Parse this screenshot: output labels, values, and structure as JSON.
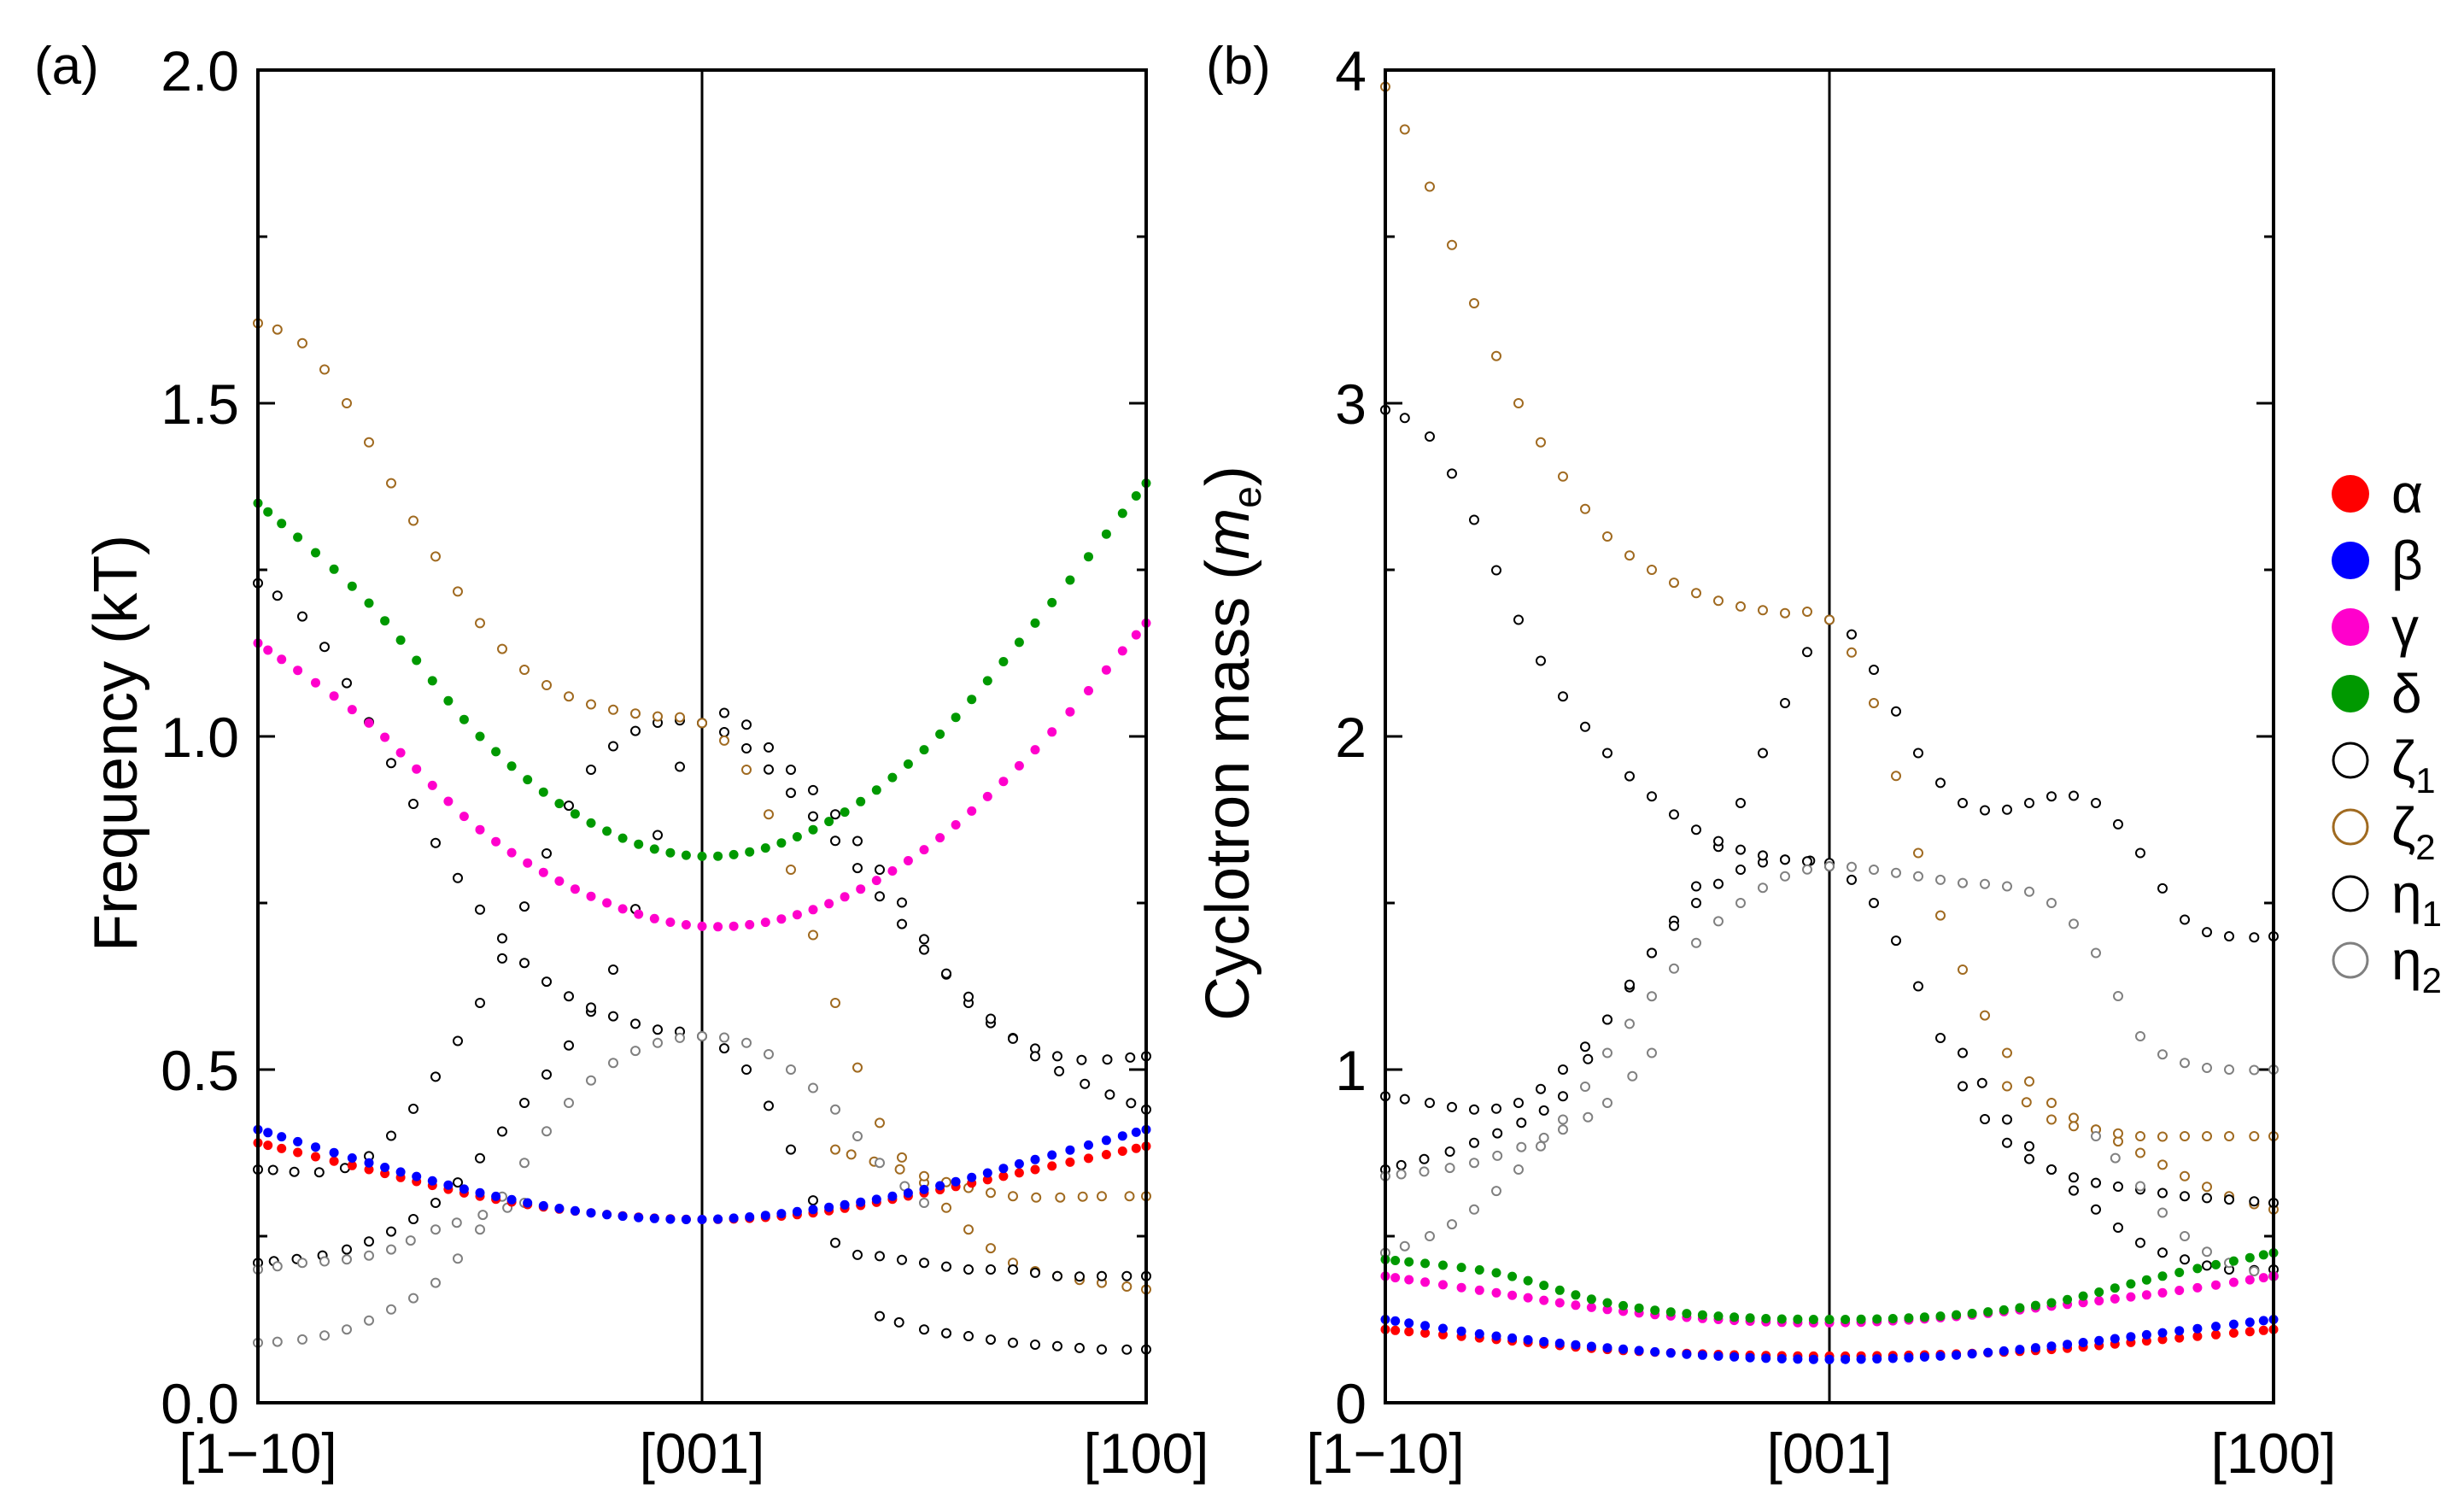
{
  "chart_data": [
    {
      "type": "scatter",
      "panel_label": "(a)",
      "ylabel": "Frequency (kT)",
      "xlabel": "",
      "ylim": [
        0.0,
        2.0
      ],
      "xlim": [
        0,
        2
      ],
      "yticks": [
        0.0,
        0.5,
        1.0,
        1.5,
        2.0
      ],
      "ytick_labels": [
        "0.0",
        "0.5",
        "1.0",
        "1.5",
        "2.0"
      ],
      "xticks": [
        0,
        1,
        2
      ],
      "xtick_labels": [
        "[1−10]",
        "[001]",
        "[100]"
      ],
      "divider_at": 1,
      "series": [
        {
          "name": "alpha",
          "filled": true,
          "color": "#ff0000",
          "x": [
            0,
            0.25,
            0.5,
            0.75,
            1,
            1.25,
            1.5,
            1.75,
            2
          ],
          "y": [
            0.39,
            0.35,
            0.31,
            0.285,
            0.275,
            0.285,
            0.315,
            0.35,
            0.385
          ]
        },
        {
          "name": "beta",
          "filled": true,
          "color": "#0000ff",
          "x": [
            0,
            0.25,
            0.5,
            0.75,
            1,
            1.25,
            1.5,
            1.75,
            2
          ],
          "y": [
            0.41,
            0.36,
            0.315,
            0.285,
            0.275,
            0.29,
            0.32,
            0.365,
            0.41
          ]
        },
        {
          "name": "gamma",
          "filled": true,
          "color": "#ff00cc",
          "x": [
            0,
            0.25,
            0.5,
            0.75,
            1,
            1.25,
            1.5,
            1.75,
            2
          ],
          "y": [
            1.14,
            1.02,
            0.86,
            0.76,
            0.715,
            0.74,
            0.83,
            0.98,
            1.17
          ]
        },
        {
          "name": "delta",
          "filled": true,
          "color": "#009900",
          "x": [
            0,
            0.25,
            0.5,
            0.75,
            1,
            1.25,
            1.5,
            1.75,
            2
          ],
          "y": [
            1.35,
            1.2,
            1.0,
            0.87,
            0.82,
            0.86,
            0.98,
            1.17,
            1.38
          ]
        },
        {
          "name": "zeta1",
          "filled": false,
          "color": "#000000",
          "x": [
            0,
            0.2,
            0.4,
            0.6,
            0.8,
            1,
            1.2,
            1.4,
            1.6,
            1.8,
            2
          ],
          "y": [
            0.21,
            0.23,
            0.3,
            0.45,
            0.65,
            1.02,
            0.95,
            0.8,
            0.6,
            0.52,
            0.52
          ]
        },
        {
          "name": "zeta1",
          "filled": false,
          "color": "#000000",
          "x": [
            0,
            0.25,
            0.5,
            0.75,
            1,
            1.25,
            1.5,
            1.75,
            2
          ],
          "y": [
            0.35,
            0.37,
            0.6,
            0.95,
            1.02,
            0.88,
            0.68,
            0.52,
            0.44
          ]
        },
        {
          "name": "zeta2",
          "filled": false,
          "color": "#a06a20",
          "x": [
            0,
            0.1,
            0.2,
            0.3,
            0.4,
            0.5,
            0.6,
            0.7,
            0.8,
            0.9,
            1,
            1.1,
            1.2,
            1.3,
            1.4,
            1.5,
            1.6,
            1.7,
            1.8,
            1.9,
            2
          ],
          "y": [
            1.62,
            1.59,
            1.5,
            1.38,
            1.27,
            1.17,
            1.1,
            1.06,
            1.04,
            1.03,
            1.02,
            0.95,
            0.8,
            0.6,
            0.42,
            0.33,
            0.26,
            0.21,
            0.19,
            0.18,
            0.17
          ]
        },
        {
          "name": "zeta2",
          "filled": false,
          "color": "#a06a20",
          "x": [
            1.3,
            1.5,
            1.7,
            1.9,
            2
          ],
          "y": [
            0.38,
            0.34,
            0.31,
            0.31,
            0.31
          ]
        },
        {
          "name": "eta1",
          "filled": false,
          "color": "#000000",
          "x": [
            0,
            0.1,
            0.2,
            0.3,
            0.4,
            0.5,
            0.6,
            0.7,
            0.8,
            0.9,
            1,
            1.1,
            1.2,
            1.3,
            1.4,
            1.5,
            1.6,
            1.7,
            1.8,
            1.9,
            2
          ],
          "y": [
            1.23,
            1.18,
            1.08,
            0.96,
            0.84,
            0.74,
            0.66,
            0.61,
            0.58,
            0.56,
            0.55,
            0.5,
            0.38,
            0.24,
            0.22,
            0.21,
            0.2,
            0.2,
            0.19,
            0.19,
            0.19
          ]
        },
        {
          "name": "eta1",
          "filled": false,
          "color": "#000000",
          "x": [
            1.4,
            1.5,
            1.6,
            1.7,
            1.8,
            1.9,
            2
          ],
          "y": [
            0.13,
            0.11,
            0.1,
            0.09,
            0.085,
            0.08,
            0.08
          ]
        },
        {
          "name": "eta2",
          "filled": false,
          "color": "#808080",
          "x": [
            0,
            0.1,
            0.2,
            0.3,
            0.4,
            0.5,
            0.6,
            0.7,
            0.8,
            0.9,
            1,
            1.1,
            1.2,
            1.3,
            1.4,
            1.5
          ],
          "y": [
            0.09,
            0.095,
            0.11,
            0.14,
            0.18,
            0.26,
            0.36,
            0.45,
            0.51,
            0.54,
            0.55,
            0.54,
            0.5,
            0.44,
            0.36,
            0.3
          ]
        },
        {
          "name": "eta2",
          "filled": false,
          "color": "#808080",
          "x": [
            0,
            0.1,
            0.2,
            0.3,
            0.4,
            0.6
          ],
          "y": [
            0.2,
            0.21,
            0.215,
            0.23,
            0.26,
            0.3
          ]
        }
      ]
    },
    {
      "type": "scatter",
      "panel_label": "(b)",
      "ylabel": "Cyclotron mass (",
      "ylabel_italic": "m",
      "ylabel_sub": "e",
      "ylabel_close": ")",
      "xlabel": "",
      "ylim": [
        0,
        4
      ],
      "xlim": [
        0,
        2
      ],
      "yticks": [
        0,
        1,
        2,
        3,
        4
      ],
      "ytick_labels": [
        "0",
        "1",
        "2",
        "3",
        "4"
      ],
      "xticks": [
        0,
        1,
        2
      ],
      "xtick_labels": [
        "[1−10]",
        "[001]",
        "[100]"
      ],
      "divider_at": 1,
      "series": [
        {
          "name": "alpha",
          "filled": true,
          "color": "#ff0000",
          "x": [
            0,
            0.25,
            0.5,
            0.75,
            1,
            1.25,
            1.5,
            1.75,
            2
          ],
          "y": [
            0.22,
            0.19,
            0.16,
            0.145,
            0.14,
            0.145,
            0.16,
            0.19,
            0.22
          ]
        },
        {
          "name": "beta",
          "filled": true,
          "color": "#0000ff",
          "x": [
            0,
            0.25,
            0.5,
            0.75,
            1,
            1.25,
            1.5,
            1.75,
            2
          ],
          "y": [
            0.25,
            0.2,
            0.165,
            0.14,
            0.13,
            0.14,
            0.17,
            0.21,
            0.25
          ]
        },
        {
          "name": "gamma",
          "filled": true,
          "color": "#ff00cc",
          "x": [
            0,
            0.25,
            0.5,
            0.75,
            1,
            1.25,
            1.5,
            1.75,
            2
          ],
          "y": [
            0.38,
            0.33,
            0.28,
            0.25,
            0.24,
            0.255,
            0.29,
            0.33,
            0.38
          ]
        },
        {
          "name": "delta",
          "filled": true,
          "color": "#009900",
          "x": [
            0,
            0.25,
            0.5,
            0.75,
            1,
            1.25,
            1.5,
            1.75,
            2
          ],
          "y": [
            0.43,
            0.39,
            0.3,
            0.26,
            0.25,
            0.26,
            0.3,
            0.38,
            0.45
          ]
        },
        {
          "name": "zeta1",
          "filled": false,
          "color": "#000000",
          "x": [
            0,
            0.1,
            0.2,
            0.3,
            0.4,
            0.5,
            0.6,
            0.7,
            0.8,
            0.9,
            1,
            1.1,
            1.2,
            1.3,
            1.4,
            1.5,
            1.6,
            1.7,
            1.8,
            1.9,
            2
          ],
          "y": [
            0.92,
            0.9,
            0.88,
            0.9,
            1.0,
            1.15,
            1.35,
            1.55,
            1.8,
            2.1,
            2.35,
            2.2,
            1.95,
            1.8,
            1.78,
            1.82,
            1.8,
            1.65,
            1.45,
            1.4,
            1.4
          ]
        },
        {
          "name": "zeta1",
          "filled": false,
          "color": "#000000",
          "x": [
            0,
            0.2,
            0.4,
            0.5,
            0.6,
            0.7,
            0.8,
            0.9,
            1
          ],
          "y": [
            0.7,
            0.78,
            0.92,
            1.15,
            1.35,
            1.5,
            1.6,
            1.63,
            1.62
          ]
        },
        {
          "name": "zeta2",
          "filled": false,
          "color": "#a06a20",
          "x": [
            0,
            0.1,
            0.2,
            0.3,
            0.4,
            0.5,
            0.6,
            0.7,
            0.8,
            0.9,
            1,
            1.1,
            1.2,
            1.3,
            1.4,
            1.5,
            1.6,
            1.7,
            1.8,
            1.9,
            2
          ],
          "y": [
            3.95,
            3.65,
            3.3,
            3.0,
            2.78,
            2.6,
            2.5,
            2.43,
            2.39,
            2.37,
            2.35,
            2.1,
            1.65,
            1.3,
            1.05,
            0.9,
            0.82,
            0.75,
            0.68,
            0.62,
            0.58
          ]
        },
        {
          "name": "zeta2",
          "filled": false,
          "color": "#a06a20",
          "x": [
            1.4,
            1.5,
            1.6,
            1.7,
            1.8,
            1.9,
            2
          ],
          "y": [
            0.95,
            0.85,
            0.82,
            0.8,
            0.8,
            0.8,
            0.8
          ]
        },
        {
          "name": "eta1",
          "filled": false,
          "color": "#000000",
          "x": [
            0,
            0.1,
            0.2,
            0.3,
            0.4,
            0.5,
            0.6,
            0.7,
            0.8,
            0.9,
            1,
            1.1,
            1.2,
            1.3,
            1.4,
            1.5,
            1.6,
            1.7,
            1.8,
            1.9,
            2
          ],
          "y": [
            2.98,
            2.9,
            2.65,
            2.35,
            2.12,
            1.95,
            1.82,
            1.72,
            1.66,
            1.63,
            1.61,
            1.5,
            1.25,
            0.95,
            0.78,
            0.7,
            0.66,
            0.64,
            0.62,
            0.61,
            0.6
          ]
        },
        {
          "name": "eta1",
          "filled": false,
          "color": "#000000",
          "x": [
            1.3,
            1.4,
            1.5,
            1.6,
            1.7,
            1.8,
            1.9,
            2
          ],
          "y": [
            1.05,
            0.85,
            0.7,
            0.58,
            0.48,
            0.43,
            0.4,
            0.4
          ]
        },
        {
          "name": "eta2",
          "filled": false,
          "color": "#808080",
          "x": [
            0,
            0.1,
            0.2,
            0.3,
            0.4,
            0.5,
            0.6,
            0.7,
            0.8,
            0.9,
            1,
            1.1,
            1.2,
            1.3,
            1.4,
            1.5,
            1.6,
            1.7,
            1.8,
            1.9,
            2
          ],
          "y": [
            0.45,
            0.5,
            0.58,
            0.7,
            0.85,
            1.05,
            1.22,
            1.38,
            1.5,
            1.58,
            1.61,
            1.6,
            1.58,
            1.56,
            1.55,
            1.5,
            1.35,
            1.1,
            1.02,
            1.0,
            1.0
          ]
        },
        {
          "name": "eta2",
          "filled": false,
          "color": "#808080",
          "x": [
            0,
            0.2,
            0.4,
            0.5,
            0.6
          ],
          "y": [
            0.68,
            0.72,
            0.82,
            0.9,
            1.05
          ]
        },
        {
          "name": "eta2",
          "filled": false,
          "color": "#808080",
          "x": [
            1.6,
            1.7,
            1.8,
            1.9,
            2
          ],
          "y": [
            0.8,
            0.65,
            0.5,
            0.42,
            0.38
          ]
        }
      ]
    }
  ],
  "legend": {
    "placement": "right",
    "entries": [
      {
        "key": "alpha",
        "label": "α",
        "sub": "",
        "filled": true,
        "color": "#ff0000"
      },
      {
        "key": "beta",
        "label": "β",
        "sub": "",
        "filled": true,
        "color": "#0000ff"
      },
      {
        "key": "gamma",
        "label": "γ",
        "sub": "",
        "filled": true,
        "color": "#ff00cc"
      },
      {
        "key": "delta",
        "label": "δ",
        "sub": "",
        "filled": true,
        "color": "#009900"
      },
      {
        "key": "zeta1",
        "label": "ζ",
        "sub": "1",
        "filled": false,
        "color": "#000000"
      },
      {
        "key": "zeta2",
        "label": "ζ",
        "sub": "2",
        "filled": false,
        "color": "#a06a20"
      },
      {
        "key": "eta1",
        "label": "η",
        "sub": "1",
        "filled": false,
        "color": "#000000"
      },
      {
        "key": "eta2",
        "label": "η",
        "sub": "2",
        "filled": false,
        "color": "#808080"
      }
    ]
  }
}
